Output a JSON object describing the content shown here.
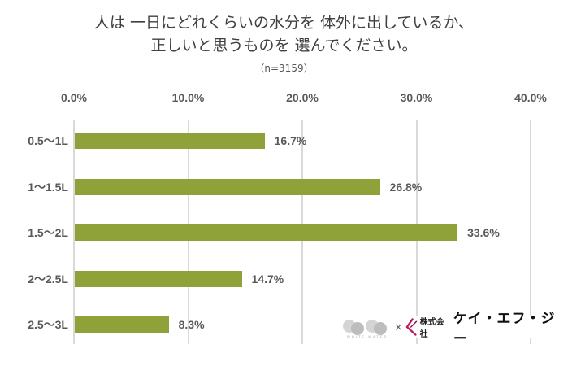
{
  "chart_data": {
    "type": "bar",
    "orientation": "horizontal",
    "title": "人は 一日にどれくらいの水分を 体外に出しているか、正しいと思うものを 選んでください。",
    "title_lines": [
      "人は 一日にどれくらいの水分を 体外に出しているか、",
      "正しいと思うものを 選んでください。"
    ],
    "subtitle": "（n=3159）",
    "categories": [
      "0.5〜1L",
      "1〜1.5L",
      "1.5〜2L",
      "2〜2.5L",
      "2.5〜3L"
    ],
    "values": [
      16.7,
      26.8,
      33.6,
      14.7,
      8.3
    ],
    "value_labels": [
      "16.7%",
      "26.8%",
      "33.6%",
      "14.7%",
      "8.3%"
    ],
    "xlabel": "",
    "ylabel": "",
    "xlim": [
      0,
      40
    ],
    "x_ticks": [
      "0.0%",
      "10.0%",
      "20.0%",
      "30.0%",
      "40.0%"
    ],
    "x_axis_position": "top",
    "grid": true,
    "legend": null,
    "bar_color": "#8FA23A"
  },
  "logos": {
    "left_caption": "WHITE WATER",
    "times": "×",
    "company_prefix": "株式会社",
    "company_name": "ケイ・エフ・ジー",
    "accent_color": "#C2185B"
  }
}
